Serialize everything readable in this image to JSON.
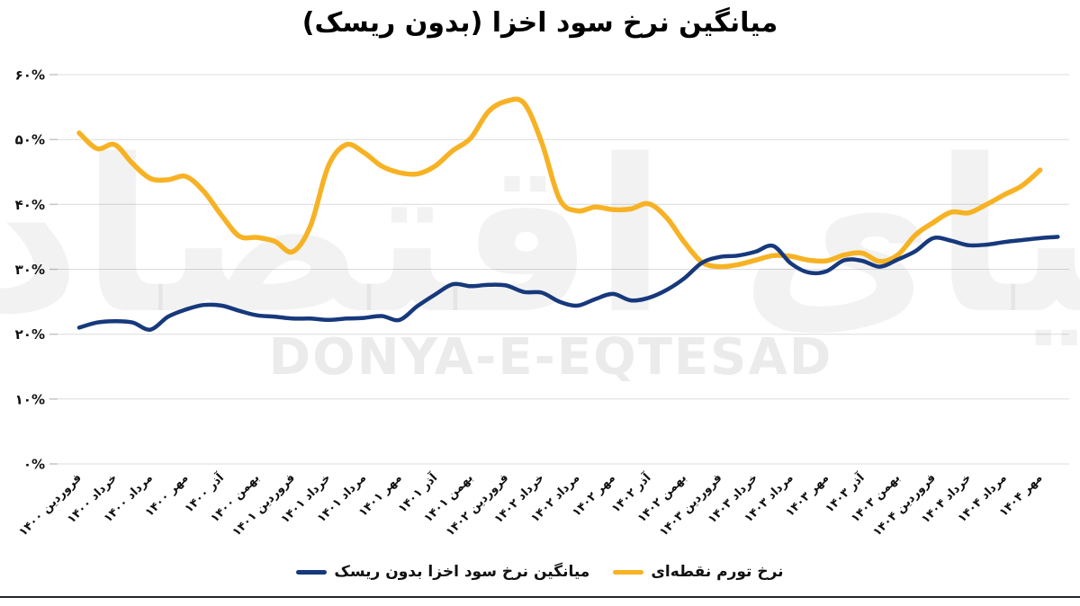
{
  "watermark": {
    "latin": "DONYA-E-EQTESAD",
    "persian": "دنیای اقتصاد"
  },
  "chart_data": {
    "type": "line",
    "title": "میانگین نرخ سود اخزا (بدون ریسک)",
    "ylim": [
      0,
      60
    ],
    "grid": "horizontal",
    "legend_position": "bottom-center",
    "y_axis": {
      "min": 0,
      "max": 60,
      "step": 10,
      "tick_labels": [
        "۰%",
        "۱۰%",
        "۲۰%",
        "۳۰%",
        "۴۰%",
        "۵۰%",
        "۶۰%"
      ]
    },
    "x_tick_every": 2,
    "x_tick_labels": [
      "فروردین ۱۴۰۰",
      "خرداد ۱۴۰۰",
      "مرداد ۱۴۰۰",
      "مهر ۱۴۰۰",
      "آذر ۱۴۰۰",
      "بهمن ۱۴۰۰",
      "فروردین ۱۴۰۱",
      "خرداد ۱۴۰۱",
      "مرداد ۱۴۰۱",
      "مهر ۱۴۰۱",
      "آذر ۱۴۰۱",
      "بهمن ۱۴۰۱",
      "فروردین ۱۴۰۲",
      "خرداد ۱۴۰۲",
      "مرداد ۱۴۰۲",
      "مهر ۱۴۰۲",
      "آذر ۱۴۰۲",
      "بهمن ۱۴۰۲",
      "فروردین ۱۴۰۳",
      "خرداد ۱۴۰۳",
      "مرداد ۱۴۰۳",
      "مهر ۱۴۰۳",
      "آذر ۱۴۰۳",
      "بهمن ۱۴۰۳",
      "فروردین ۱۴۰۴",
      "خرداد ۱۴۰۴",
      "مرداد ۱۴۰۴",
      "مهر ۱۴۰۴"
    ],
    "series": [
      {
        "key": "akhza-rate",
        "name": "میانگین نرخ سود اخزا بدون ریسک",
        "color": "#17397C",
        "values": [
          21.0,
          21.8,
          22.0,
          21.8,
          20.7,
          22.7,
          23.8,
          24.5,
          24.4,
          23.6,
          22.9,
          22.7,
          22.4,
          22.4,
          22.2,
          22.4,
          22.5,
          22.8,
          22.2,
          24.3,
          26.1,
          27.7,
          27.4,
          27.6,
          27.5,
          26.5,
          26.4,
          25.0,
          24.4,
          25.4,
          26.2,
          25.2,
          25.6,
          26.8,
          28.6,
          31.0,
          31.9,
          32.1,
          32.7,
          33.6,
          30.9,
          29.5,
          29.7,
          31.4,
          31.3,
          30.4,
          31.5,
          32.8,
          34.8,
          34.4,
          33.7,
          33.8,
          34.2,
          34.5,
          34.8,
          35.0
        ]
      },
      {
        "key": "point-inflation",
        "name": "نرخ تورم نقطه‌ای",
        "color": "#F7B224",
        "values": [
          51.0,
          48.6,
          49.2,
          46.3,
          44.0,
          43.8,
          44.3,
          42.0,
          38.3,
          35.1,
          34.9,
          34.3,
          32.7,
          36.7,
          45.9,
          49.2,
          48.0,
          45.9,
          44.9,
          44.7,
          45.9,
          48.3,
          50.2,
          54.3,
          55.9,
          55.6,
          49.5,
          40.8,
          39.0,
          39.6,
          39.2,
          39.3,
          40.1,
          38.0,
          34.2,
          31.1,
          30.4,
          30.7,
          31.4,
          32.1,
          32.0,
          31.4,
          31.3,
          32.2,
          32.5,
          31.2,
          32.2,
          35.3,
          37.2,
          38.8,
          38.7,
          40.0,
          41.5,
          42.9,
          45.3
        ]
      }
    ]
  }
}
